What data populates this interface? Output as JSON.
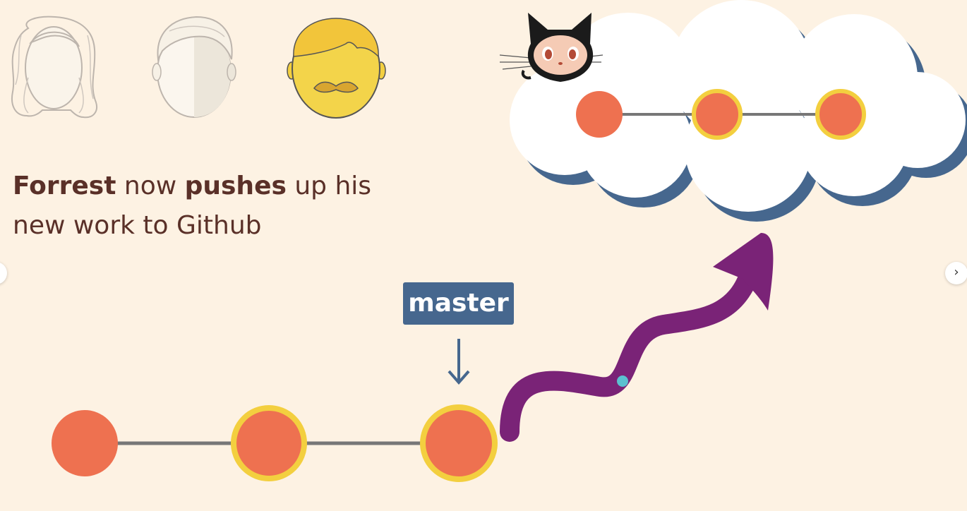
{
  "caption": {
    "part1": "Forrest",
    "part2": " now ",
    "part3": "pushes",
    "part4": " up his",
    "line2": "new work to Github"
  },
  "branch_label": "master",
  "navigation": {
    "next_glyph": "›",
    "prev_glyph": "‹"
  },
  "icons": {
    "octocat": "github-octocat-icon",
    "cloud": "cloud-icon"
  },
  "colors": {
    "background": "#fdf2e3",
    "commit_fill": "#ee7150",
    "commit_ring": "#f3cf3f",
    "branch_line": "#777777",
    "label_bg": "#46678e",
    "arrow": "#7a2377",
    "cloud_shadow": "#46678e",
    "cursor_dot": "#5bc0d0"
  }
}
